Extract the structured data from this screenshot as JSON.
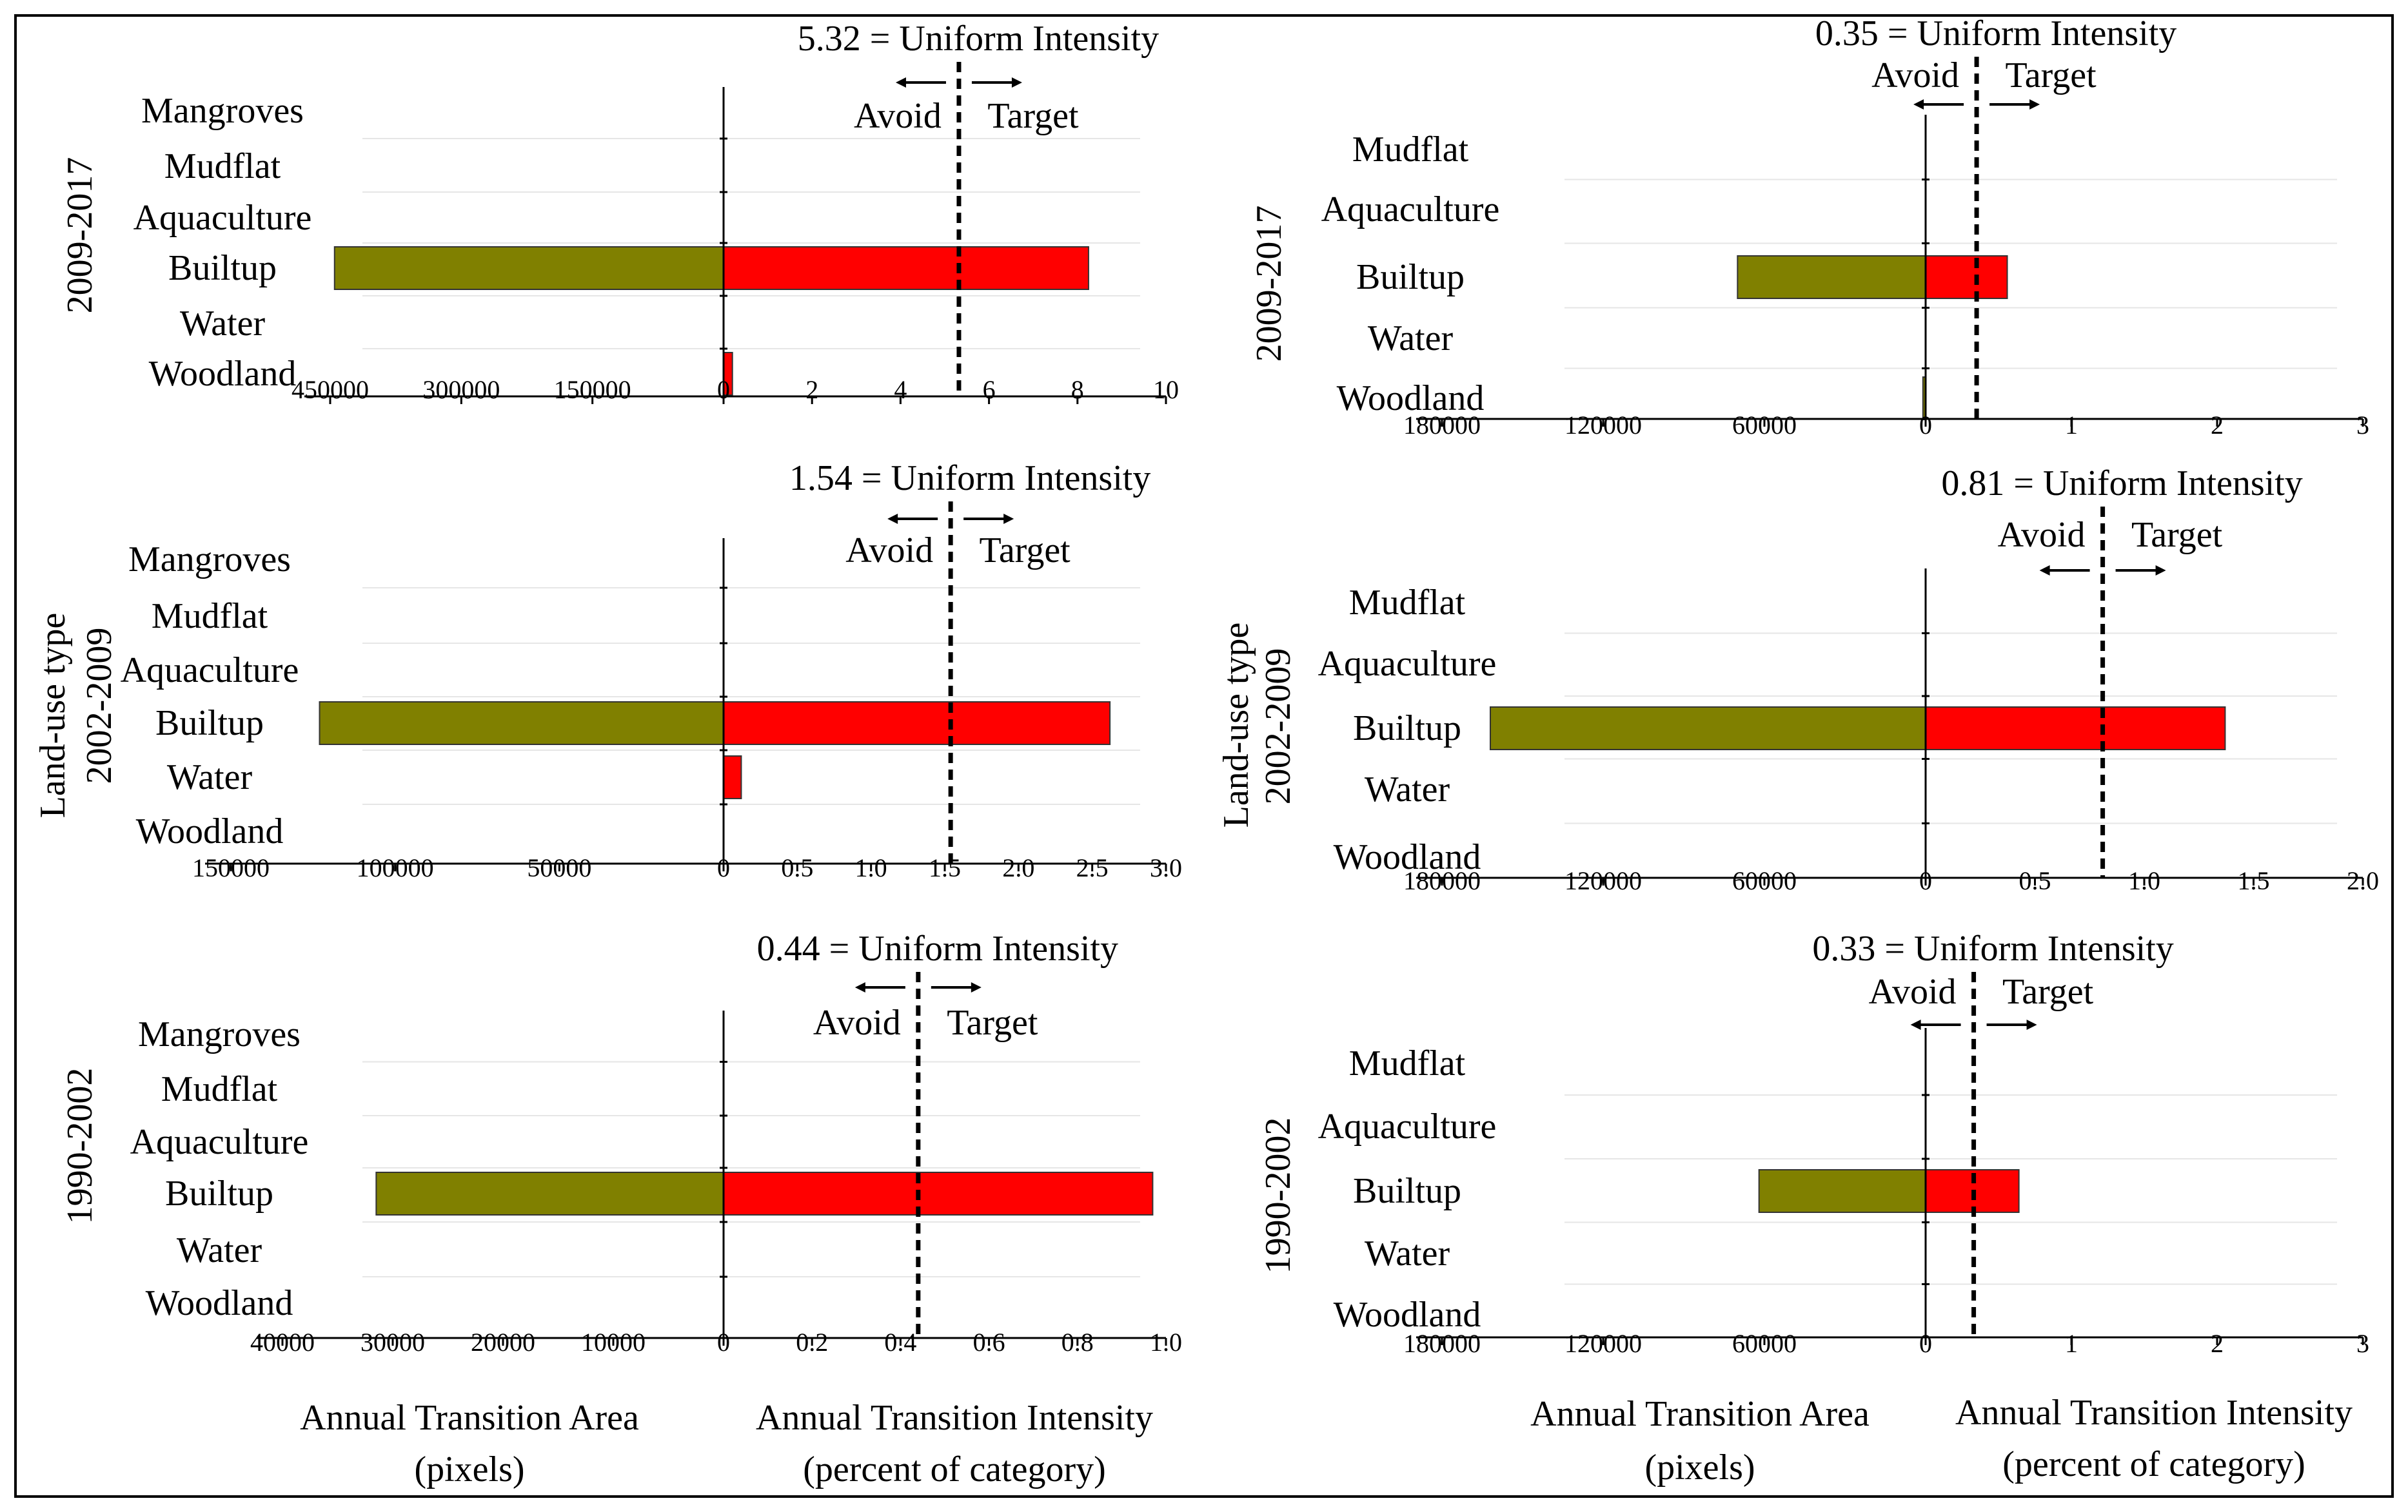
{
  "figure": {
    "border_color": "#000000",
    "colors": {
      "area_bar": "#808000",
      "intensity_bar": "#ff0000",
      "uniform_line": "#000000"
    },
    "avoid_label": "Avoid",
    "target_label": "Target",
    "left_panel": {
      "axis_label": "Land-use type",
      "footer_area_line1": "Annual Transition Area",
      "footer_area_line2": "(pixels)",
      "footer_intensity_line1": "Annual Transition Intensity",
      "footer_intensity_line2": "(percent of category)"
    },
    "right_panel": {
      "axis_label": "Land-use type",
      "footer_area_line1": "Annual Transition Area",
      "footer_area_line2": "(pixels)",
      "footer_intensity_line1": "Annual Transition Intensity",
      "footer_intensity_line2": "(percent of category)"
    }
  },
  "chart_data": [
    {
      "type": "bar",
      "panel": "left",
      "period": "2009-2017",
      "title": "5.32 = Uniform Intensity",
      "uniform_intensity": 5.32,
      "categories": [
        "Mangroves",
        "Mudflat",
        "Aquaculture",
        "Builtup",
        "Water",
        "Woodland"
      ],
      "area_ticks": [
        "450000",
        "300000",
        "150000",
        "0"
      ],
      "area_max": 450000,
      "intensity_ticks": [
        "2",
        "4",
        "6",
        "8",
        "10"
      ],
      "intensity_max": 10,
      "series": [
        {
          "name": "Annual Transition Area (pixels)",
          "values": [
            0,
            0,
            0,
            445000,
            0,
            0
          ]
        },
        {
          "name": "Annual Transition Intensity (percent of category)",
          "values": [
            0,
            0,
            0,
            8.25,
            0,
            0.2
          ]
        }
      ]
    },
    {
      "type": "bar",
      "panel": "left",
      "period": "2002-2009",
      "title": "1.54 = Uniform Intensity",
      "uniform_intensity": 1.54,
      "categories": [
        "Mangroves",
        "Mudflat",
        "Aquaculture",
        "Builtup",
        "Water",
        "Woodland"
      ],
      "area_ticks": [
        "150000",
        "100000",
        "50000",
        "0"
      ],
      "area_max": 150000,
      "intensity_ticks": [
        "0.5",
        "1.0",
        "1.5",
        "2.0",
        "2.5",
        "3.0"
      ],
      "intensity_max": 3.0,
      "series": [
        {
          "name": "Annual Transition Area (pixels)",
          "values": [
            0,
            0,
            0,
            123000,
            0,
            0
          ]
        },
        {
          "name": "Annual Transition Intensity (percent of category)",
          "values": [
            0,
            0,
            0,
            2.62,
            0.12,
            0
          ]
        }
      ]
    },
    {
      "type": "bar",
      "panel": "left",
      "period": "1990-2002",
      "title": "0.44 = Uniform Intensity",
      "uniform_intensity": 0.44,
      "categories": [
        "Mangroves",
        "Mudflat",
        "Aquaculture",
        "Builtup",
        "Water",
        "Woodland"
      ],
      "area_ticks": [
        "40000",
        "30000",
        "20000",
        "10000",
        "0"
      ],
      "area_max": 40000,
      "intensity_ticks": [
        "0.2",
        "0.4",
        "0.6",
        "0.8",
        "1.0"
      ],
      "intensity_max": 1.0,
      "series": [
        {
          "name": "Annual Transition Area (pixels)",
          "values": [
            0,
            0,
            0,
            31500,
            0,
            0
          ]
        },
        {
          "name": "Annual Transition Intensity (percent of category)",
          "values": [
            0,
            0,
            0,
            0.97,
            0,
            0
          ]
        }
      ]
    },
    {
      "type": "bar",
      "panel": "right",
      "period": "2009-2017",
      "title": "0.35 = Uniform Intensity",
      "uniform_intensity": 0.35,
      "categories": [
        "Mudflat",
        "Aquaculture",
        "Builtup",
        "Water",
        "Woodland"
      ],
      "area_ticks": [
        "180000",
        "120000",
        "60000",
        "0"
      ],
      "area_max": 180000,
      "intensity_ticks": [
        "1",
        "2",
        "3"
      ],
      "intensity_max": 3,
      "series": [
        {
          "name": "Annual Transition Area (pixels)",
          "values": [
            0,
            0,
            70000,
            0,
            1000
          ]
        },
        {
          "name": "Annual Transition Intensity (percent of category)",
          "values": [
            0,
            0,
            0.56,
            0,
            0
          ]
        }
      ]
    },
    {
      "type": "bar",
      "panel": "right",
      "period": "2002-2009",
      "title": "0.81 = Uniform Intensity",
      "uniform_intensity": 0.81,
      "categories": [
        "Mudflat",
        "Aquaculture",
        "Builtup",
        "Water",
        "Woodland"
      ],
      "area_ticks": [
        "180000",
        "120000",
        "60000",
        "0"
      ],
      "area_max": 180000,
      "intensity_ticks": [
        "0.5",
        "1.0",
        "1.5",
        "2.0"
      ],
      "intensity_max": 2.0,
      "series": [
        {
          "name": "Annual Transition Area (pixels)",
          "values": [
            0,
            0,
            162000,
            0,
            0
          ]
        },
        {
          "name": "Annual Transition Intensity (percent of category)",
          "values": [
            0,
            0,
            1.37,
            0,
            0
          ]
        }
      ]
    },
    {
      "type": "bar",
      "panel": "right",
      "period": "1990-2002",
      "title": "0.33 = Uniform Intensity",
      "uniform_intensity": 0.33,
      "categories": [
        "Mudflat",
        "Aquaculture",
        "Builtup",
        "Water",
        "Woodland"
      ],
      "area_ticks": [
        "180000",
        "120000",
        "60000",
        "0"
      ],
      "area_max": 180000,
      "intensity_ticks": [
        "1",
        "2",
        "3"
      ],
      "intensity_max": 3,
      "series": [
        {
          "name": "Annual Transition Area (pixels)",
          "values": [
            0,
            0,
            62000,
            0,
            0
          ]
        },
        {
          "name": "Annual Transition Intensity (percent of category)",
          "values": [
            0,
            0,
            0.64,
            0,
            0
          ]
        }
      ]
    }
  ]
}
